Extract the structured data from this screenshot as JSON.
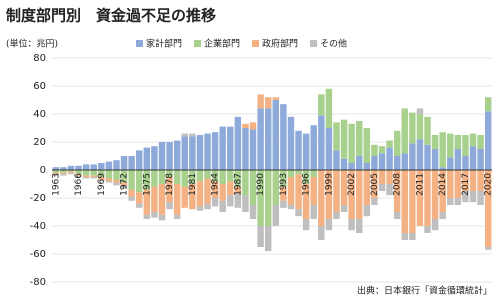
{
  "chart_data": {
    "type": "stacked_bar",
    "title": "制度部門別　資金過不足の推移",
    "y_label": "(単位：兆円)",
    "source": "出典：日本銀行「資金循環統計」",
    "categories": [
      "1963",
      null,
      null,
      "1966",
      null,
      null,
      "1969",
      null,
      null,
      "1972",
      null,
      null,
      "1975",
      null,
      null,
      "1978",
      null,
      null,
      "1981",
      null,
      null,
      "1984",
      null,
      null,
      "1987",
      null,
      null,
      "1990",
      null,
      null,
      "1993",
      null,
      null,
      "1996",
      null,
      null,
      "1999",
      null,
      null,
      "2002",
      null,
      null,
      "2005",
      null,
      null,
      "2008",
      null,
      null,
      "2011",
      null,
      null,
      "2014",
      null,
      null,
      "2017",
      null,
      null,
      "2020"
    ],
    "series": [
      {
        "name": "家計部門",
        "color": "#8eaadb",
        "values": [
          2,
          2,
          3,
          3,
          4,
          4,
          5,
          6,
          7,
          10,
          10,
          14,
          16,
          17,
          20,
          20,
          21,
          24,
          24,
          25,
          26,
          27,
          31,
          31,
          38,
          30,
          29,
          44,
          44,
          50,
          47,
          38,
          28,
          26,
          32,
          39,
          30,
          14,
          8,
          5,
          10,
          5,
          10,
          12,
          16,
          10,
          12,
          19,
          22,
          18,
          15,
          2,
          9,
          15,
          10,
          17,
          15,
          42
        ]
      },
      {
        "name": "企業部門",
        "color": "#a9d18e",
        "values": [
          -2,
          -2,
          -1,
          -3,
          -4,
          -4,
          -5,
          -6,
          -7,
          -9,
          -14,
          -16,
          -14,
          -12,
          -10,
          -5,
          -10,
          -12,
          -10,
          -8,
          -6,
          -8,
          -10,
          -8,
          -12,
          -18,
          -25,
          -40,
          -40,
          -25,
          -12,
          -5,
          -3,
          -10,
          -5,
          15,
          28,
          20,
          28,
          28,
          25,
          25,
          8,
          5,
          5,
          18,
          32,
          22,
          18,
          20,
          10,
          25,
          17,
          10,
          15,
          9,
          10,
          10
        ]
      },
      {
        "name": "政府部門",
        "color": "#f4b183",
        "values": [
          -1,
          -1,
          -1,
          -1,
          -1,
          -1,
          -2,
          -2,
          -2,
          -2,
          -5,
          -8,
          -18,
          -18,
          -22,
          -18,
          -22,
          -15,
          -18,
          -18,
          -18,
          -12,
          -12,
          -10,
          -5,
          3,
          5,
          10,
          8,
          2,
          -10,
          -20,
          -25,
          -25,
          -20,
          -40,
          -35,
          -30,
          -25,
          -35,
          -35,
          -25,
          -20,
          -10,
          -10,
          -30,
          -45,
          -45,
          -40,
          -40,
          -35,
          -30,
          -20,
          -20,
          -15,
          -15,
          -15,
          -55
        ]
      },
      {
        "name": "その他",
        "color": "#bfbfbf",
        "values": [
          -1,
          -1,
          -1,
          -1,
          -1,
          -1,
          -1,
          -1,
          -2,
          -2,
          -3,
          -3,
          -3,
          -4,
          -4,
          -5,
          -3,
          2,
          2,
          -3,
          -4,
          -6,
          -8,
          -8,
          -10,
          -12,
          -10,
          -15,
          -18,
          -15,
          -5,
          -3,
          -5,
          -8,
          -10,
          -10,
          -8,
          -5,
          -5,
          -8,
          -10,
          -8,
          -5,
          -5,
          -8,
          -5,
          -5,
          -5,
          4,
          -5,
          -8,
          -5,
          -5,
          -5,
          -8,
          -8,
          -10,
          -2
        ]
      }
    ],
    "ylim": [
      -80,
      80
    ],
    "yticks": [
      -80,
      -60,
      -40,
      -20,
      0,
      20,
      40,
      60,
      80
    ],
    "grid": true
  }
}
